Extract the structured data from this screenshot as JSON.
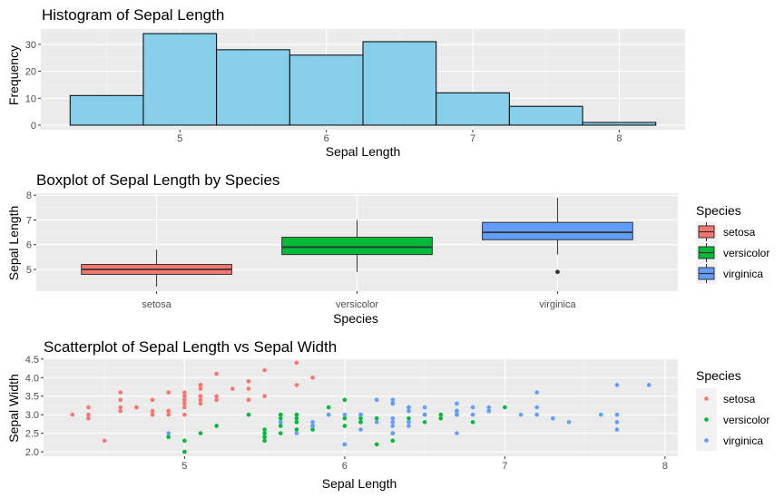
{
  "chart_data": [
    {
      "type": "histogram",
      "title": "Histogram of Sepal Length",
      "xlabel": "Sepal Length",
      "ylabel": "Frequency",
      "fill_color": "#87CEEB",
      "xlim": [
        4.05,
        8.45
      ],
      "ylim": [
        -1.7,
        35.7
      ],
      "xticks": [
        5,
        6,
        7,
        8
      ],
      "yticks": [
        0,
        10,
        20,
        30
      ],
      "bins": [
        {
          "start": 4.25,
          "end": 4.75,
          "count": 11
        },
        {
          "start": 4.75,
          "end": 5.25,
          "count": 34
        },
        {
          "start": 5.25,
          "end": 5.75,
          "count": 28
        },
        {
          "start": 5.75,
          "end": 6.25,
          "count": 26
        },
        {
          "start": 6.25,
          "end": 6.75,
          "count": 31
        },
        {
          "start": 6.75,
          "end": 7.25,
          "count": 12
        },
        {
          "start": 7.25,
          "end": 7.75,
          "count": 7
        },
        {
          "start": 7.75,
          "end": 8.25,
          "count": 1
        }
      ]
    },
    {
      "type": "box",
      "title": "Boxplot of Sepal Length by Species",
      "xlabel": "Species",
      "ylabel": "Sepal Length",
      "categories": [
        "setosa",
        "versicolor",
        "virginica"
      ],
      "ylim": [
        4.12,
        8.08
      ],
      "yticks": [
        5,
        6,
        7,
        8
      ],
      "legend_title": "Species",
      "legend_position": "right",
      "boxes": [
        {
          "name": "setosa",
          "min": 4.3,
          "q1": 4.8,
          "median": 5.0,
          "q3": 5.2,
          "max": 5.8,
          "outliers": [],
          "color": "#F8766D"
        },
        {
          "name": "versicolor",
          "min": 4.9,
          "q1": 5.6,
          "median": 5.9,
          "q3": 6.3,
          "max": 7.0,
          "outliers": [],
          "color": "#00BA38"
        },
        {
          "name": "virginica",
          "min": 5.6,
          "q1": 6.2,
          "median": 6.5,
          "q3": 6.9,
          "max": 7.9,
          "outliers": [
            4.9
          ],
          "color": "#619CFF"
        }
      ]
    },
    {
      "type": "scatter",
      "title": "Scatterplot of Sepal Length vs Sepal Width",
      "xlabel": "Sepal Length",
      "ylabel": "Sepal Width",
      "xlim": [
        4.12,
        8.08
      ],
      "ylim": [
        1.88,
        4.52
      ],
      "xticks": [
        5,
        6,
        7,
        8
      ],
      "yticks": [
        2.0,
        2.5,
        3.0,
        3.5,
        4.0,
        4.5
      ],
      "ytick_labels": [
        "2.0",
        "2.5",
        "3.0",
        "3.5",
        "4.0",
        "4.5"
      ],
      "legend_title": "Species",
      "legend_position": "right",
      "series": [
        {
          "name": "setosa",
          "color": "#F8766D",
          "points": [
            [
              5.1,
              3.5
            ],
            [
              4.9,
              3.0
            ],
            [
              4.7,
              3.2
            ],
            [
              4.6,
              3.1
            ],
            [
              5.0,
              3.6
            ],
            [
              5.4,
              3.9
            ],
            [
              4.6,
              3.4
            ],
            [
              5.0,
              3.4
            ],
            [
              4.4,
              2.9
            ],
            [
              4.9,
              3.1
            ],
            [
              5.4,
              3.7
            ],
            [
              4.8,
              3.4
            ],
            [
              4.8,
              3.0
            ],
            [
              4.3,
              3.0
            ],
            [
              5.8,
              4.0
            ],
            [
              5.7,
              4.4
            ],
            [
              5.4,
              3.9
            ],
            [
              5.1,
              3.5
            ],
            [
              5.7,
              3.8
            ],
            [
              5.1,
              3.8
            ],
            [
              5.4,
              3.4
            ],
            [
              5.1,
              3.7
            ],
            [
              4.6,
              3.6
            ],
            [
              5.1,
              3.3
            ],
            [
              4.8,
              3.4
            ],
            [
              5.0,
              3.0
            ],
            [
              5.0,
              3.4
            ],
            [
              5.2,
              3.5
            ],
            [
              5.2,
              3.4
            ],
            [
              4.7,
              3.2
            ],
            [
              4.8,
              3.1
            ],
            [
              5.4,
              3.4
            ],
            [
              5.2,
              4.1
            ],
            [
              5.5,
              4.2
            ],
            [
              4.9,
              3.1
            ],
            [
              5.0,
              3.2
            ],
            [
              5.5,
              3.5
            ],
            [
              4.9,
              3.6
            ],
            [
              4.4,
              3.0
            ],
            [
              5.1,
              3.4
            ],
            [
              5.0,
              3.5
            ],
            [
              4.5,
              2.3
            ],
            [
              4.4,
              3.2
            ],
            [
              5.0,
              3.5
            ],
            [
              5.1,
              3.8
            ],
            [
              4.8,
              3.0
            ],
            [
              5.1,
              3.8
            ],
            [
              4.6,
              3.2
            ],
            [
              5.3,
              3.7
            ],
            [
              5.0,
              3.3
            ]
          ]
        },
        {
          "name": "versicolor",
          "color": "#00BA38",
          "points": [
            [
              7.0,
              3.2
            ],
            [
              6.4,
              3.2
            ],
            [
              6.9,
              3.1
            ],
            [
              5.5,
              2.3
            ],
            [
              6.5,
              2.8
            ],
            [
              5.7,
              2.8
            ],
            [
              6.3,
              3.3
            ],
            [
              4.9,
              2.4
            ],
            [
              6.6,
              2.9
            ],
            [
              5.2,
              2.7
            ],
            [
              5.0,
              2.0
            ],
            [
              5.9,
              3.0
            ],
            [
              6.0,
              2.2
            ],
            [
              6.1,
              2.9
            ],
            [
              5.6,
              2.9
            ],
            [
              6.7,
              3.1
            ],
            [
              5.6,
              3.0
            ],
            [
              5.8,
              2.7
            ],
            [
              6.2,
              2.2
            ],
            [
              5.6,
              2.5
            ],
            [
              5.9,
              3.2
            ],
            [
              6.1,
              2.8
            ],
            [
              6.3,
              2.5
            ],
            [
              6.1,
              2.8
            ],
            [
              6.4,
              2.9
            ],
            [
              6.6,
              3.0
            ],
            [
              6.8,
              2.8
            ],
            [
              6.7,
              3.0
            ],
            [
              6.0,
              2.9
            ],
            [
              5.7,
              2.6
            ],
            [
              5.5,
              2.4
            ],
            [
              5.5,
              2.4
            ],
            [
              5.8,
              2.7
            ],
            [
              6.0,
              2.7
            ],
            [
              5.4,
              3.0
            ],
            [
              6.0,
              3.4
            ],
            [
              6.7,
              3.1
            ],
            [
              6.3,
              2.3
            ],
            [
              5.6,
              3.0
            ],
            [
              5.5,
              2.5
            ],
            [
              5.5,
              2.6
            ],
            [
              6.1,
              3.0
            ],
            [
              5.8,
              2.6
            ],
            [
              5.0,
              2.3
            ],
            [
              5.6,
              2.7
            ],
            [
              5.7,
              3.0
            ],
            [
              5.7,
              2.9
            ],
            [
              6.2,
              2.9
            ],
            [
              5.1,
              2.5
            ],
            [
              5.7,
              2.8
            ]
          ]
        },
        {
          "name": "virginica",
          "color": "#619CFF",
          "points": [
            [
              6.3,
              3.3
            ],
            [
              5.8,
              2.7
            ],
            [
              7.1,
              3.0
            ],
            [
              6.3,
              2.9
            ],
            [
              6.5,
              3.0
            ],
            [
              7.6,
              3.0
            ],
            [
              4.9,
              2.5
            ],
            [
              7.3,
              2.9
            ],
            [
              6.7,
              2.5
            ],
            [
              7.2,
              3.6
            ],
            [
              6.5,
              3.2
            ],
            [
              6.4,
              2.7
            ],
            [
              6.8,
              3.0
            ],
            [
              5.7,
              2.5
            ],
            [
              5.8,
              2.8
            ],
            [
              6.4,
              3.2
            ],
            [
              6.5,
              3.0
            ],
            [
              7.7,
              3.8
            ],
            [
              7.7,
              2.6
            ],
            [
              6.0,
              2.2
            ],
            [
              6.9,
              3.2
            ],
            [
              5.6,
              2.8
            ],
            [
              7.7,
              2.8
            ],
            [
              6.3,
              2.7
            ],
            [
              6.7,
              3.3
            ],
            [
              7.2,
              3.2
            ],
            [
              6.2,
              2.8
            ],
            [
              6.1,
              3.0
            ],
            [
              6.4,
              2.8
            ],
            [
              7.2,
              3.0
            ],
            [
              7.4,
              2.8
            ],
            [
              7.9,
              3.8
            ],
            [
              6.4,
              2.8
            ],
            [
              6.3,
              2.8
            ],
            [
              6.1,
              2.6
            ],
            [
              7.7,
              3.0
            ],
            [
              6.3,
              3.4
            ],
            [
              6.4,
              3.1
            ],
            [
              6.0,
              3.0
            ],
            [
              6.9,
              3.1
            ],
            [
              6.7,
              3.1
            ],
            [
              6.9,
              3.1
            ],
            [
              5.8,
              2.7
            ],
            [
              6.8,
              3.2
            ],
            [
              6.7,
              3.3
            ],
            [
              6.7,
              3.0
            ],
            [
              6.3,
              2.5
            ],
            [
              6.5,
              3.0
            ],
            [
              6.2,
              3.4
            ],
            [
              5.9,
              3.0
            ]
          ]
        }
      ]
    }
  ]
}
